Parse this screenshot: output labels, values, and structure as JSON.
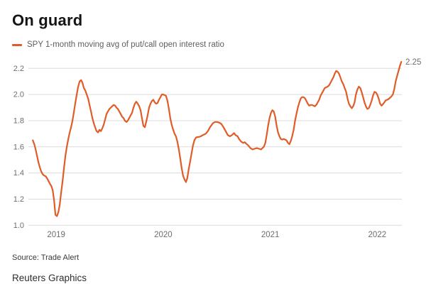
{
  "header": {
    "title": "On guard"
  },
  "legend": {
    "label": "SPY 1-month moving avg of put/call open interest ratio",
    "swatch_color": "#e05c28"
  },
  "footer": {
    "source": "Source: Trade Alert",
    "credit": "Reuters Graphics"
  },
  "chart_data": {
    "type": "line",
    "title": "On guard",
    "xlabel": "",
    "ylabel": "",
    "grid": true,
    "legend_position": "top-left",
    "line_color": "#e05c28",
    "grid_color": "#dcdcdc",
    "axis_text_color": "#6e6e6e",
    "x_ticks": [
      2019,
      2020,
      2021,
      2022
    ],
    "y_ticks": [
      1.0,
      1.2,
      1.4,
      1.6,
      1.8,
      2.0,
      2.2
    ],
    "y_tick_labels": [
      "1.0",
      "1.2",
      "1.4",
      "1.6",
      "1.8",
      "2.0",
      "2.2"
    ],
    "x_range": [
      2018.74,
      2022.23
    ],
    "ylim": [
      1.0,
      2.25
    ],
    "end_label": "2.25",
    "last_value": 2.25,
    "series": [
      {
        "name": "SPY 1-month moving avg of put/call open interest ratio",
        "points": [
          [
            2018.781,
            1.65
          ],
          [
            2018.795,
            1.62
          ],
          [
            2018.808,
            1.58
          ],
          [
            2018.821,
            1.53
          ],
          [
            2018.834,
            1.48
          ],
          [
            2018.848,
            1.44
          ],
          [
            2018.861,
            1.41
          ],
          [
            2018.874,
            1.39
          ],
          [
            2018.887,
            1.38
          ],
          [
            2018.901,
            1.375
          ],
          [
            2018.914,
            1.36
          ],
          [
            2018.927,
            1.34
          ],
          [
            2018.94,
            1.32
          ],
          [
            2018.954,
            1.3
          ],
          [
            2018.967,
            1.27
          ],
          [
            2018.98,
            1.19
          ],
          [
            2018.993,
            1.08
          ],
          [
            2019.007,
            1.07
          ],
          [
            2019.02,
            1.1
          ],
          [
            2019.033,
            1.16
          ],
          [
            2019.046,
            1.25
          ],
          [
            2019.06,
            1.34
          ],
          [
            2019.073,
            1.44
          ],
          [
            2019.086,
            1.53
          ],
          [
            2019.099,
            1.6
          ],
          [
            2019.113,
            1.66
          ],
          [
            2019.126,
            1.71
          ],
          [
            2019.139,
            1.75
          ],
          [
            2019.152,
            1.8
          ],
          [
            2019.166,
            1.87
          ],
          [
            2019.179,
            1.94
          ],
          [
            2019.192,
            2.0
          ],
          [
            2019.205,
            2.06
          ],
          [
            2019.219,
            2.1
          ],
          [
            2019.232,
            2.11
          ],
          [
            2019.245,
            2.09
          ],
          [
            2019.258,
            2.05
          ],
          [
            2019.272,
            2.03
          ],
          [
            2019.285,
            2.0
          ],
          [
            2019.298,
            1.97
          ],
          [
            2019.311,
            1.92
          ],
          [
            2019.325,
            1.87
          ],
          [
            2019.338,
            1.82
          ],
          [
            2019.351,
            1.78
          ],
          [
            2019.364,
            1.75
          ],
          [
            2019.377,
            1.72
          ],
          [
            2019.391,
            1.71
          ],
          [
            2019.404,
            1.73
          ],
          [
            2019.417,
            1.72
          ],
          [
            2019.43,
            1.74
          ],
          [
            2019.444,
            1.77
          ],
          [
            2019.457,
            1.81
          ],
          [
            2019.47,
            1.85
          ],
          [
            2019.483,
            1.87
          ],
          [
            2019.497,
            1.89
          ],
          [
            2019.51,
            1.9
          ],
          [
            2019.523,
            1.91
          ],
          [
            2019.536,
            1.92
          ],
          [
            2019.55,
            1.915
          ],
          [
            2019.563,
            1.9
          ],
          [
            2019.576,
            1.89
          ],
          [
            2019.589,
            1.87
          ],
          [
            2019.603,
            1.85
          ],
          [
            2019.616,
            1.83
          ],
          [
            2019.629,
            1.82
          ],
          [
            2019.642,
            1.8
          ],
          [
            2019.656,
            1.79
          ],
          [
            2019.669,
            1.8
          ],
          [
            2019.682,
            1.82
          ],
          [
            2019.695,
            1.84
          ],
          [
            2019.709,
            1.86
          ],
          [
            2019.722,
            1.9
          ],
          [
            2019.735,
            1.93
          ],
          [
            2019.748,
            1.945
          ],
          [
            2019.762,
            1.93
          ],
          [
            2019.775,
            1.91
          ],
          [
            2019.788,
            1.88
          ],
          [
            2019.801,
            1.82
          ],
          [
            2019.815,
            1.76
          ],
          [
            2019.828,
            1.75
          ],
          [
            2019.841,
            1.79
          ],
          [
            2019.854,
            1.84
          ],
          [
            2019.868,
            1.9
          ],
          [
            2019.881,
            1.93
          ],
          [
            2019.894,
            1.95
          ],
          [
            2019.907,
            1.96
          ],
          [
            2019.921,
            1.94
          ],
          [
            2019.934,
            1.93
          ],
          [
            2019.947,
            1.935
          ],
          [
            2019.96,
            1.96
          ],
          [
            2019.974,
            1.98
          ],
          [
            2019.987,
            2.0
          ],
          [
            2020.0,
            2.0
          ],
          [
            2020.013,
            1.995
          ],
          [
            2020.026,
            1.99
          ],
          [
            2020.04,
            1.95
          ],
          [
            2020.053,
            1.89
          ],
          [
            2020.066,
            1.82
          ],
          [
            2020.079,
            1.77
          ],
          [
            2020.093,
            1.73
          ],
          [
            2020.106,
            1.7
          ],
          [
            2020.119,
            1.68
          ],
          [
            2020.132,
            1.64
          ],
          [
            2020.146,
            1.58
          ],
          [
            2020.159,
            1.51
          ],
          [
            2020.172,
            1.44
          ],
          [
            2020.185,
            1.38
          ],
          [
            2020.199,
            1.35
          ],
          [
            2020.212,
            1.33
          ],
          [
            2020.225,
            1.36
          ],
          [
            2020.238,
            1.43
          ],
          [
            2020.252,
            1.49
          ],
          [
            2020.265,
            1.55
          ],
          [
            2020.278,
            1.61
          ],
          [
            2020.291,
            1.65
          ],
          [
            2020.305,
            1.67
          ],
          [
            2020.318,
            1.675
          ],
          [
            2020.331,
            1.675
          ],
          [
            2020.351,
            1.68
          ],
          [
            2020.371,
            1.69
          ],
          [
            2020.397,
            1.7
          ],
          [
            2020.417,
            1.72
          ],
          [
            2020.437,
            1.75
          ],
          [
            2020.464,
            1.78
          ],
          [
            2020.483,
            1.79
          ],
          [
            2020.503,
            1.79
          ],
          [
            2020.523,
            1.785
          ],
          [
            2020.543,
            1.775
          ],
          [
            2020.563,
            1.75
          ],
          [
            2020.583,
            1.72
          ],
          [
            2020.603,
            1.69
          ],
          [
            2020.623,
            1.68
          ],
          [
            2020.642,
            1.69
          ],
          [
            2020.662,
            1.705
          ],
          [
            2020.675,
            1.69
          ],
          [
            2020.695,
            1.68
          ],
          [
            2020.708,
            1.66
          ],
          [
            2020.728,
            1.64
          ],
          [
            2020.748,
            1.63
          ],
          [
            2020.762,
            1.635
          ],
          [
            2020.781,
            1.62
          ],
          [
            2020.795,
            1.61
          ],
          [
            2020.815,
            1.59
          ],
          [
            2020.834,
            1.58
          ],
          [
            2020.854,
            1.585
          ],
          [
            2020.874,
            1.59
          ],
          [
            2020.894,
            1.585
          ],
          [
            2020.914,
            1.58
          ],
          [
            2020.927,
            1.59
          ],
          [
            2020.94,
            1.6
          ],
          [
            2020.954,
            1.63
          ],
          [
            2020.967,
            1.69
          ],
          [
            2020.98,
            1.76
          ],
          [
            2020.993,
            1.82
          ],
          [
            2021.007,
            1.86
          ],
          [
            2021.02,
            1.88
          ],
          [
            2021.033,
            1.87
          ],
          [
            2021.046,
            1.83
          ],
          [
            2021.06,
            1.76
          ],
          [
            2021.073,
            1.71
          ],
          [
            2021.086,
            1.68
          ],
          [
            2021.099,
            1.66
          ],
          [
            2021.113,
            1.655
          ],
          [
            2021.126,
            1.66
          ],
          [
            2021.139,
            1.655
          ],
          [
            2021.152,
            1.65
          ],
          [
            2021.166,
            1.63
          ],
          [
            2021.179,
            1.62
          ],
          [
            2021.192,
            1.645
          ],
          [
            2021.205,
            1.68
          ],
          [
            2021.219,
            1.73
          ],
          [
            2021.232,
            1.8
          ],
          [
            2021.245,
            1.85
          ],
          [
            2021.258,
            1.9
          ],
          [
            2021.272,
            1.94
          ],
          [
            2021.285,
            1.97
          ],
          [
            2021.298,
            1.98
          ],
          [
            2021.311,
            1.98
          ],
          [
            2021.325,
            1.97
          ],
          [
            2021.338,
            1.95
          ],
          [
            2021.351,
            1.93
          ],
          [
            2021.364,
            1.915
          ],
          [
            2021.377,
            1.92
          ],
          [
            2021.391,
            1.92
          ],
          [
            2021.404,
            1.915
          ],
          [
            2021.417,
            1.91
          ],
          [
            2021.43,
            1.92
          ],
          [
            2021.444,
            1.94
          ],
          [
            2021.457,
            1.96
          ],
          [
            2021.47,
            1.99
          ],
          [
            2021.483,
            2.01
          ],
          [
            2021.497,
            2.03
          ],
          [
            2021.51,
            2.05
          ],
          [
            2021.523,
            2.055
          ],
          [
            2021.536,
            2.06
          ],
          [
            2021.55,
            2.07
          ],
          [
            2021.563,
            2.09
          ],
          [
            2021.576,
            2.11
          ],
          [
            2021.589,
            2.13
          ],
          [
            2021.603,
            2.16
          ],
          [
            2021.616,
            2.18
          ],
          [
            2021.629,
            2.175
          ],
          [
            2021.642,
            2.16
          ],
          [
            2021.656,
            2.13
          ],
          [
            2021.669,
            2.1
          ],
          [
            2021.682,
            2.08
          ],
          [
            2021.695,
            2.05
          ],
          [
            2021.709,
            2.02
          ],
          [
            2021.722,
            1.97
          ],
          [
            2021.735,
            1.93
          ],
          [
            2021.748,
            1.91
          ],
          [
            2021.762,
            1.895
          ],
          [
            2021.775,
            1.91
          ],
          [
            2021.788,
            1.94
          ],
          [
            2021.801,
            2.0
          ],
          [
            2021.815,
            2.04
          ],
          [
            2021.828,
            2.06
          ],
          [
            2021.841,
            2.05
          ],
          [
            2021.854,
            2.02
          ],
          [
            2021.868,
            1.98
          ],
          [
            2021.881,
            1.94
          ],
          [
            2021.894,
            1.91
          ],
          [
            2021.907,
            1.89
          ],
          [
            2021.921,
            1.895
          ],
          [
            2021.934,
            1.92
          ],
          [
            2021.947,
            1.95
          ],
          [
            2021.96,
            1.99
          ],
          [
            2021.974,
            2.02
          ],
          [
            2021.987,
            2.015
          ],
          [
            2022.0,
            2.0
          ],
          [
            2022.013,
            1.97
          ],
          [
            2022.026,
            1.93
          ],
          [
            2022.04,
            1.915
          ],
          [
            2022.053,
            1.925
          ],
          [
            2022.066,
            1.94
          ],
          [
            2022.079,
            1.955
          ],
          [
            2022.093,
            1.96
          ],
          [
            2022.106,
            1.965
          ],
          [
            2022.119,
            1.975
          ],
          [
            2022.132,
            1.985
          ],
          [
            2022.146,
            2.0
          ],
          [
            2022.159,
            2.04
          ],
          [
            2022.172,
            2.1
          ],
          [
            2022.185,
            2.14
          ],
          [
            2022.199,
            2.18
          ],
          [
            2022.212,
            2.22
          ],
          [
            2022.225,
            2.25
          ]
        ]
      }
    ]
  }
}
